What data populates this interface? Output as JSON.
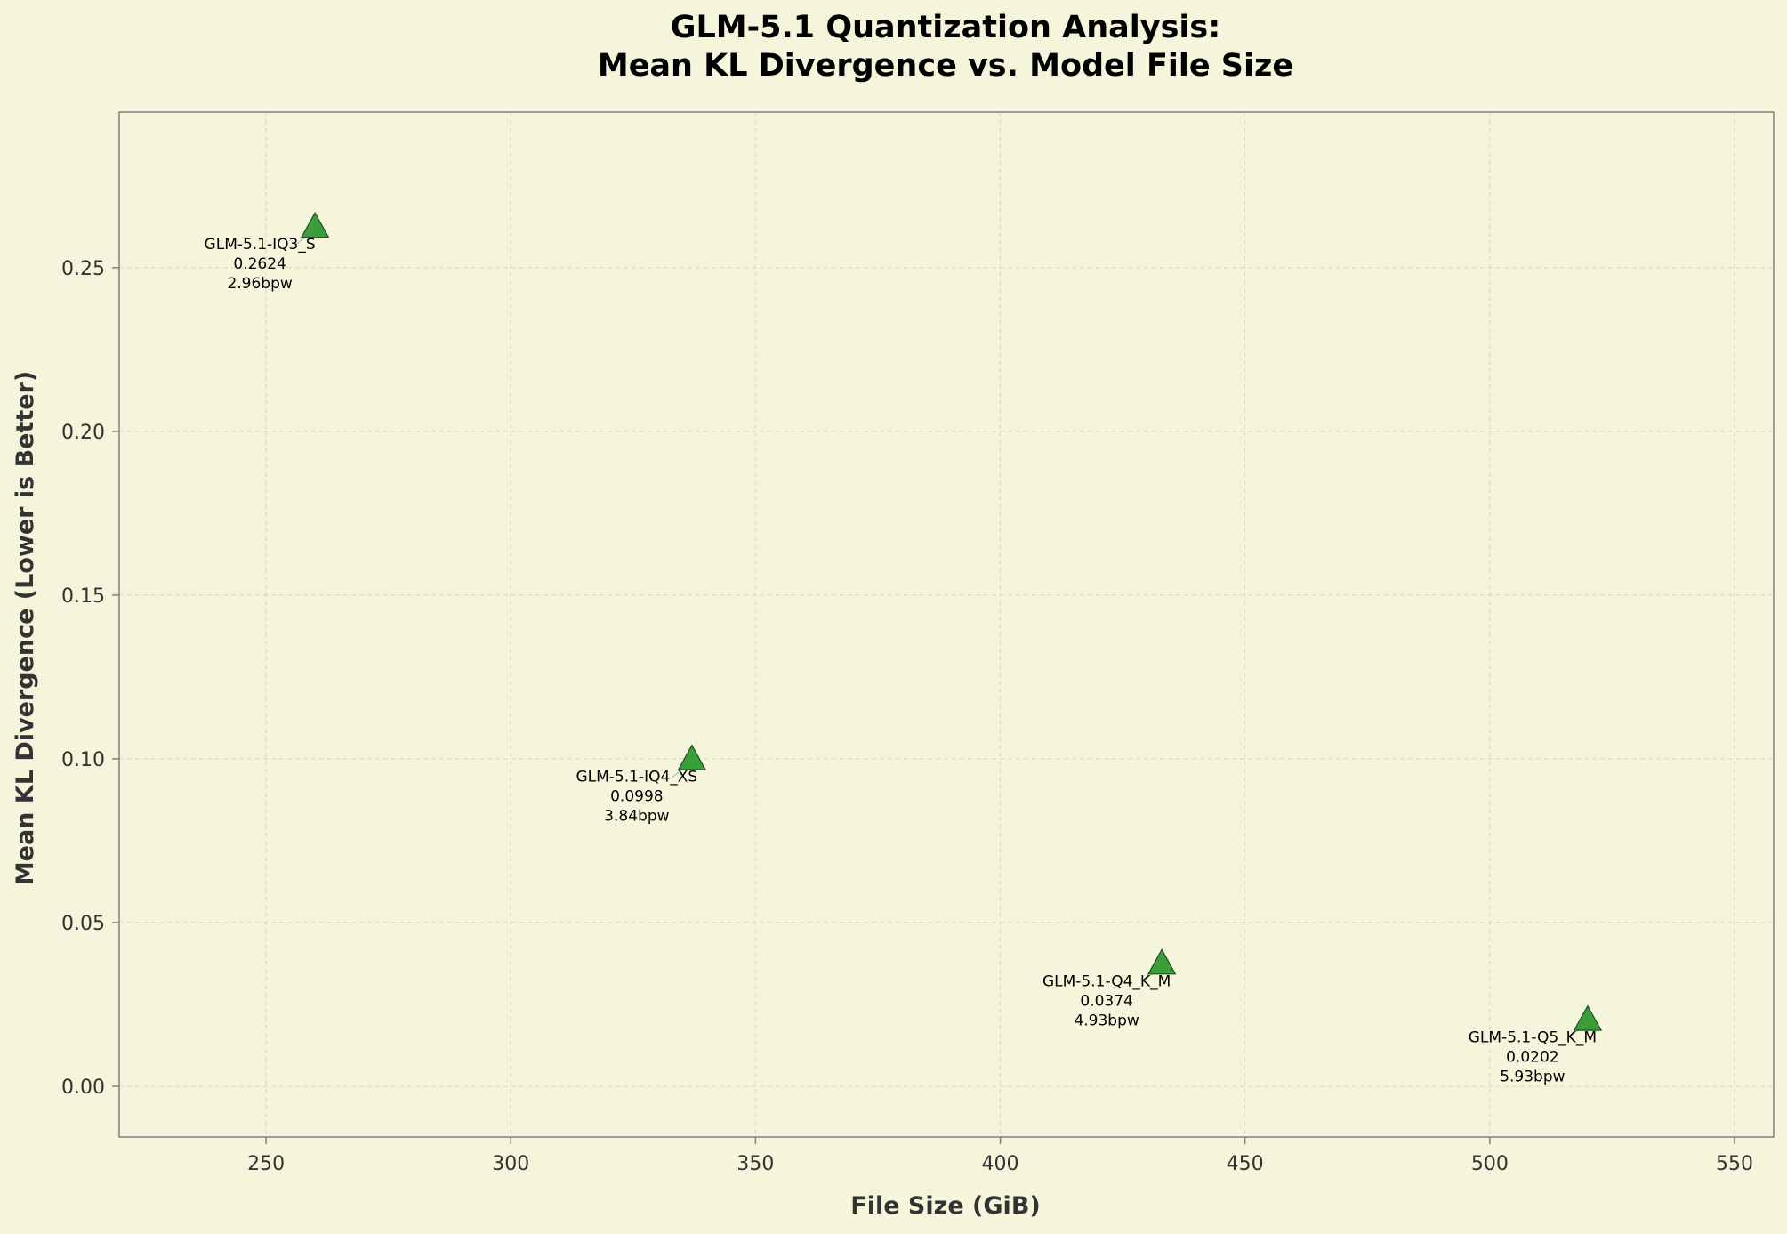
{
  "chart_data": {
    "type": "scatter",
    "title_line1": "GLM-5.1 Quantization Analysis:",
    "title_line2": "Mean KL Divergence vs. Model File Size",
    "xlabel": "File Size (GiB)",
    "ylabel": "Mean KL Divergence (Lower is Better)",
    "xlim": [
      220,
      558
    ],
    "ylim": [
      -0.0155,
      0.2975
    ],
    "xticks": [
      250,
      300,
      350,
      400,
      450,
      500,
      550
    ],
    "yticks": [
      0.0,
      0.05,
      0.1,
      0.15,
      0.2,
      0.25
    ],
    "xtick_labels": [
      "250",
      "300",
      "350",
      "400",
      "450",
      "500",
      "550"
    ],
    "ytick_labels": [
      "0.00",
      "0.05",
      "0.10",
      "0.15",
      "0.20",
      "0.25"
    ],
    "grid": true,
    "marker": "triangle",
    "colors": {
      "background": "#f5f5dc",
      "marker_fill": "#3a9e3a",
      "marker_edge": "#1f4d1f",
      "axis": "#808080",
      "grid": "#d8d8c0",
      "text": "#333333",
      "title": "#000000"
    },
    "points": [
      {
        "name": "GLM-5.1-IQ3_S",
        "x": 260,
        "y": 0.2624,
        "value_label": "0.2624",
        "bpw": "2.96bpw"
      },
      {
        "name": "GLM-5.1-IQ4_XS",
        "x": 337,
        "y": 0.0998,
        "value_label": "0.0998",
        "bpw": "3.84bpw"
      },
      {
        "name": "GLM-5.1-Q4_K_M",
        "x": 433,
        "y": 0.0374,
        "value_label": "0.0374",
        "bpw": "4.93bpw"
      },
      {
        "name": "GLM-5.1-Q5_K_M",
        "x": 520,
        "y": 0.0202,
        "value_label": "0.0202",
        "bpw": "5.93bpw"
      }
    ]
  }
}
